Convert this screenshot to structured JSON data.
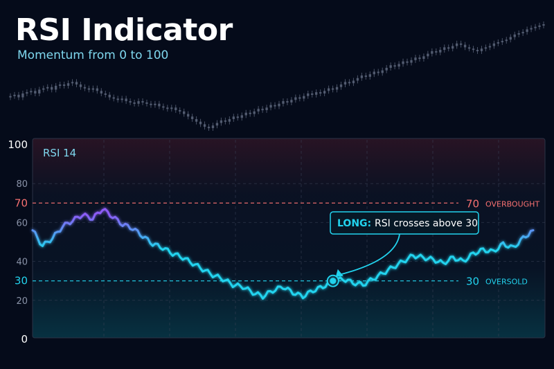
{
  "header": {
    "title": "RSI Indicator",
    "subtitle": "Momentum from 0 to 100"
  },
  "colors": {
    "background": "#050b1a",
    "rsi_low": "#22d3ee",
    "rsi_high": "#8b5cf6",
    "overbought": "#f87171",
    "oversold": "#22d3ee",
    "candles": "#5b6479"
  },
  "chart_data": [
    {
      "type": "candlestick",
      "role": "price",
      "x": [
        0,
        1,
        2,
        3,
        4,
        5,
        6,
        7,
        8,
        9,
        10,
        11,
        12,
        13,
        14,
        15,
        16,
        17,
        18,
        19,
        20,
        21,
        22,
        23,
        24,
        25,
        26,
        27,
        28,
        29,
        30,
        31,
        32,
        33,
        34,
        35,
        36,
        37,
        38,
        39,
        40,
        41,
        42,
        43,
        44,
        45,
        46,
        47,
        48,
        49,
        50,
        51,
        52,
        53,
        54,
        55,
        56,
        57,
        58,
        59,
        60,
        61,
        62,
        63,
        64,
        65,
        66,
        67,
        68,
        69,
        70,
        71,
        72,
        73,
        74,
        75,
        76,
        77,
        78,
        79,
        80,
        81,
        82,
        83,
        84,
        85,
        86,
        87,
        88,
        89,
        90,
        91,
        92,
        93,
        94,
        95,
        96,
        97,
        98,
        99,
        100,
        101,
        102,
        103,
        104,
        105,
        106,
        107,
        108,
        109,
        110,
        111,
        112,
        113,
        114,
        115,
        116,
        117,
        118,
        119,
        120,
        121,
        122,
        123,
        124,
        125,
        126,
        127,
        128,
        129
      ],
      "close": [
        42,
        43,
        41,
        44,
        45,
        46,
        44,
        47,
        48,
        49,
        47,
        50,
        51,
        50,
        52,
        53,
        51,
        49,
        48,
        47,
        48,
        46,
        44,
        43,
        41,
        40,
        39,
        40,
        38,
        37,
        36,
        38,
        37,
        36,
        35,
        36,
        34,
        33,
        32,
        33,
        31,
        30,
        28,
        26,
        24,
        22,
        20,
        18,
        17,
        19,
        21,
        23,
        22,
        24,
        26,
        25,
        27,
        29,
        28,
        30,
        32,
        31,
        33,
        35,
        34,
        36,
        38,
        37,
        39,
        41,
        40,
        42,
        44,
        43,
        45,
        44,
        46,
        48,
        47,
        49,
        51,
        53,
        52,
        54,
        56,
        58,
        57,
        59,
        61,
        60,
        62,
        64,
        66,
        65,
        67,
        69,
        68,
        70,
        72,
        71,
        73,
        75,
        77,
        76,
        78,
        80,
        79,
        81,
        83,
        82,
        80,
        79,
        78,
        77,
        79,
        80,
        81,
        83,
        84,
        85,
        86,
        88,
        90,
        91,
        92,
        94,
        95,
        96,
        97,
        98
      ]
    },
    {
      "type": "line",
      "title": "RSI 14",
      "x": [
        0,
        2,
        4,
        6,
        8,
        10,
        12,
        14,
        16,
        18,
        20,
        22,
        24,
        26,
        28,
        30,
        32,
        34,
        36,
        38,
        40,
        42,
        44,
        46,
        48,
        50,
        52,
        54,
        56,
        58,
        60,
        62,
        64,
        66,
        68,
        70,
        72,
        74,
        76,
        78,
        80,
        82,
        84,
        86,
        88,
        90,
        92,
        94,
        96,
        98,
        100
      ],
      "values": [
        56,
        48,
        52,
        58,
        61,
        64,
        62,
        67,
        63,
        59,
        57,
        53,
        49,
        47,
        44,
        42,
        39,
        36,
        33,
        31,
        28,
        27,
        24,
        22,
        25,
        27,
        24,
        22,
        25,
        27,
        30,
        31,
        29,
        28,
        31,
        34,
        37,
        40,
        43,
        42,
        41,
        39,
        42,
        40,
        44,
        46,
        45,
        49,
        47,
        52,
        56
      ],
      "ylim": [
        0,
        100
      ],
      "yticks": [
        0,
        20,
        30,
        40,
        60,
        70,
        80,
        100
      ],
      "grid": true,
      "annotations": {
        "overbought": {
          "value": 70,
          "label": "70",
          "text": "OVERBOUGHT"
        },
        "oversold": {
          "value": 30,
          "label": "30",
          "text": "OVERSOLD"
        },
        "signal": {
          "x": 60,
          "value": 30,
          "prefix": "LONG:",
          "text": "RSI crosses above 30"
        }
      }
    }
  ]
}
